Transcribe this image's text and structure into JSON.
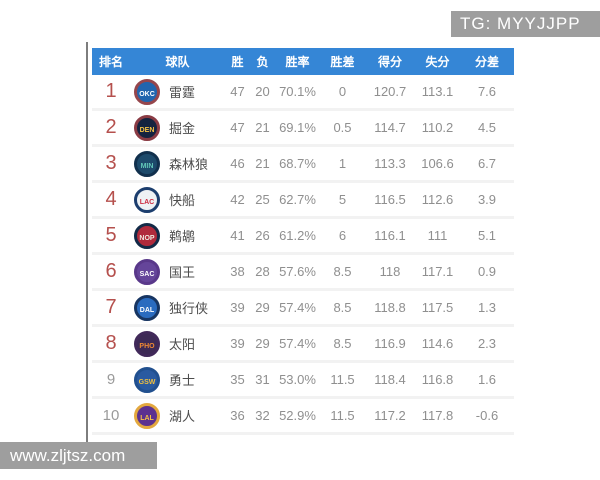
{
  "banners": {
    "tg": "TG: MYYJJPP",
    "watermark": "www.zljtsz.com"
  },
  "colors": {
    "header_bg": "#3586d6",
    "rank_red": "#b5504d",
    "rank_gray": "#9a9a9a",
    "banner_bg": "#9e9e9e",
    "stat_text": "#8f8f8f",
    "team_text": "#4d4d4d"
  },
  "table": {
    "headers": [
      "排名",
      "球队",
      "胜",
      "负",
      "胜率",
      "胜差",
      "得分",
      "失分",
      "分差"
    ],
    "rows": [
      {
        "rank": "1",
        "team": "雷霆",
        "wins": "47",
        "losses": "20",
        "win_pct": "70.1%",
        "games_behind": "0",
        "points_for": "120.7",
        "points_against": "113.1",
        "point_diff": "7.6",
        "rank_style": "red",
        "logo": {
          "abbr": "OKC",
          "ring": "#95464c",
          "bg": "#2165ae",
          "fg": "#ffffff"
        }
      },
      {
        "rank": "2",
        "team": "掘金",
        "wins": "47",
        "losses": "21",
        "win_pct": "69.1%",
        "games_behind": "0.5",
        "points_for": "114.7",
        "points_against": "110.2",
        "point_diff": "4.5",
        "rank_style": "red",
        "logo": {
          "abbr": "DEN",
          "ring": "#8a3b44",
          "bg": "#15233f",
          "fg": "#f6c244"
        }
      },
      {
        "rank": "3",
        "team": "森林狼",
        "wins": "46",
        "losses": "21",
        "win_pct": "68.7%",
        "games_behind": "1",
        "points_for": "113.3",
        "points_against": "106.6",
        "point_diff": "6.7",
        "rank_style": "red",
        "logo": {
          "abbr": "MIN",
          "ring": "#11304d",
          "bg": "#1d4a6b",
          "fg": "#63c8b9"
        }
      },
      {
        "rank": "4",
        "team": "快船",
        "wins": "42",
        "losses": "25",
        "win_pct": "62.7%",
        "games_behind": "5",
        "points_for": "116.5",
        "points_against": "112.6",
        "point_diff": "3.9",
        "rank_style": "red",
        "logo": {
          "abbr": "LAC",
          "ring": "#1c3e6e",
          "bg": "#eef1f4",
          "fg": "#cc2b40"
        }
      },
      {
        "rank": "5",
        "team": "鹈鹕",
        "wins": "41",
        "losses": "26",
        "win_pct": "61.2%",
        "games_behind": "6",
        "points_for": "116.1",
        "points_against": "111",
        "point_diff": "5.1",
        "rank_style": "red",
        "logo": {
          "abbr": "NOP",
          "ring": "#132a47",
          "bg": "#b02a3c",
          "fg": "#f1e9df"
        }
      },
      {
        "rank": "6",
        "team": "国王",
        "wins": "38",
        "losses": "28",
        "win_pct": "57.6%",
        "games_behind": "8.5",
        "points_for": "118",
        "points_against": "117.1",
        "point_diff": "0.9",
        "rank_style": "red",
        "logo": {
          "abbr": "SAC",
          "ring": "#59388a",
          "bg": "#65459a",
          "fg": "#ffffff"
        }
      },
      {
        "rank": "7",
        "team": "独行侠",
        "wins": "39",
        "losses": "29",
        "win_pct": "57.4%",
        "games_behind": "8.5",
        "points_for": "118.8",
        "points_against": "117.5",
        "point_diff": "1.3",
        "rank_style": "red",
        "logo": {
          "abbr": "DAL",
          "ring": "#173562",
          "bg": "#2a6bbf",
          "fg": "#ffffff"
        }
      },
      {
        "rank": "8",
        "team": "太阳",
        "wins": "39",
        "losses": "29",
        "win_pct": "57.4%",
        "games_behind": "8.5",
        "points_for": "116.9",
        "points_against": "114.6",
        "point_diff": "2.3",
        "rank_style": "red",
        "logo": {
          "abbr": "PHO",
          "ring": "#41295a",
          "bg": "#3d2a55",
          "fg": "#ef8833"
        }
      },
      {
        "rank": "9",
        "team": "勇士",
        "wins": "35",
        "losses": "31",
        "win_pct": "53.0%",
        "games_behind": "11.5",
        "points_for": "118.4",
        "points_against": "116.8",
        "point_diff": "1.6",
        "rank_style": "gray",
        "logo": {
          "abbr": "GSW",
          "ring": "#21508f",
          "bg": "#2a5aa0",
          "fg": "#f3c13d"
        }
      },
      {
        "rank": "10",
        "team": "湖人",
        "wins": "36",
        "losses": "32",
        "win_pct": "52.9%",
        "games_behind": "11.5",
        "points_for": "117.2",
        "points_against": "117.8",
        "point_diff": "-0.6",
        "rank_style": "gray",
        "logo": {
          "abbr": "LAL",
          "ring": "#e3a83f",
          "bg": "#5c3190",
          "fg": "#f6c244"
        }
      }
    ]
  }
}
